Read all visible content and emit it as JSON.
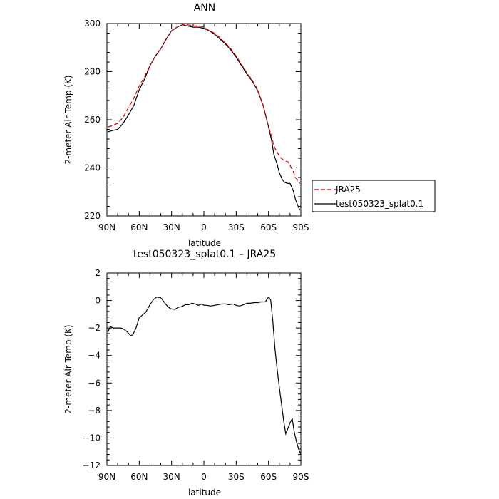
{
  "chart_data": [
    {
      "type": "line",
      "title": "ANN",
      "xlabel": "latitude",
      "ylabel": "2-meter Air Temp (K)",
      "xlim": [
        90,
        -90
      ],
      "ylim": [
        220,
        300
      ],
      "xticks": [
        90,
        60,
        30,
        0,
        -30,
        -60,
        -90
      ],
      "xtick_labels": [
        "90N",
        "60N",
        "30N",
        "0",
        "30S",
        "60S",
        "90S"
      ],
      "yticks": [
        220,
        240,
        260,
        280,
        300
      ],
      "ytick_labels": [
        "220",
        "240",
        "260",
        "280",
        "300"
      ],
      "grid": false,
      "legend": "right-outside",
      "series": [
        {
          "name": "JRA25",
          "color": "#d40000",
          "dash": "dashed",
          "x": [
            89,
            85,
            80,
            75,
            70,
            65,
            60,
            55,
            50,
            45,
            40,
            35,
            30,
            25,
            20,
            15,
            10,
            5,
            0,
            -5,
            -10,
            -15,
            -20,
            -25,
            -30,
            -35,
            -40,
            -45,
            -50,
            -55,
            -60,
            -63,
            -65,
            -68,
            -70,
            -73,
            -75,
            -78,
            -80,
            -83,
            -85,
            -87,
            -89
          ],
          "y": [
            257,
            257.5,
            258.5,
            261,
            265,
            269,
            274,
            278,
            282.5,
            286.5,
            289.5,
            293.5,
            297,
            298.5,
            299.5,
            299.5,
            299,
            299,
            298.5,
            297,
            296,
            294,
            292,
            289.5,
            286.5,
            283,
            279.5,
            276.5,
            272.5,
            266,
            257,
            253,
            249,
            246.5,
            245,
            243.5,
            243,
            242.5,
            241,
            238.5,
            236,
            235,
            233.5
          ]
        },
        {
          "name": "test050323_splat0.1",
          "color": "#000000",
          "dash": "solid",
          "x": [
            89,
            85,
            80,
            75,
            70,
            65,
            60,
            55,
            50,
            45,
            40,
            35,
            30,
            25,
            20,
            15,
            10,
            5,
            0,
            -5,
            -10,
            -15,
            -20,
            -25,
            -30,
            -35,
            -40,
            -45,
            -50,
            -55,
            -60,
            -63,
            -65,
            -68,
            -70,
            -73,
            -75,
            -78,
            -80,
            -83,
            -85,
            -87,
            -89
          ],
          "y": [
            255,
            255.5,
            256,
            258.5,
            262,
            266,
            272.5,
            277,
            282.5,
            286.5,
            289.5,
            293.5,
            297,
            298.5,
            299.5,
            299,
            298.5,
            298.5,
            298,
            297,
            295.5,
            293.5,
            291.5,
            289,
            286,
            282.5,
            279,
            276,
            272,
            266,
            257,
            251,
            245.5,
            241.5,
            238,
            235,
            234,
            233.5,
            233.5,
            230.5,
            227,
            224.5,
            222.5
          ]
        }
      ]
    },
    {
      "type": "line",
      "title": "test050323_splat0.1 – JRA25",
      "xlabel": "latitude",
      "ylabel": "2-meter Air Temp (K)",
      "xlim": [
        90,
        -90
      ],
      "ylim": [
        -12,
        2
      ],
      "xticks": [
        90,
        60,
        30,
        0,
        -30,
        -60,
        -90
      ],
      "xtick_labels": [
        "90N",
        "60N",
        "30N",
        "0",
        "30S",
        "60S",
        "90S"
      ],
      "yticks": [
        -12,
        -10,
        -8,
        -6,
        -4,
        -2,
        0,
        2
      ],
      "ytick_labels": [
        "−12",
        "−10",
        "−8",
        "−6",
        "−4",
        "−2",
        "0",
        "2"
      ],
      "grid": false,
      "series": [
        {
          "color": "#000000",
          "dash": "solid",
          "x": [
            89,
            87,
            84,
            80,
            77,
            74,
            71,
            68,
            66,
            63,
            60,
            57,
            54,
            50,
            47,
            44,
            40,
            37,
            34,
            31,
            27,
            24,
            21,
            17,
            14,
            11,
            8,
            5,
            2,
            0,
            -3,
            -6,
            -10,
            -13,
            -17,
            -20,
            -23,
            -27,
            -30,
            -33,
            -37,
            -40,
            -43,
            -47,
            -50,
            -53,
            -57,
            -60,
            -62,
            -64,
            -66,
            -68,
            -70,
            -72,
            -74,
            -76,
            -78,
            -80,
            -82,
            -84,
            -86,
            -88,
            -90
          ],
          "y": [
            -2.3,
            -1.9,
            -2,
            -2,
            -2,
            -2.1,
            -2.3,
            -2.55,
            -2.5,
            -2,
            -1.25,
            -1.05,
            -0.85,
            -0.3,
            0.05,
            0.25,
            0.2,
            -0.1,
            -0.4,
            -0.6,
            -0.65,
            -0.5,
            -0.45,
            -0.3,
            -0.3,
            -0.2,
            -0.25,
            -0.35,
            -0.25,
            -0.35,
            -0.35,
            -0.4,
            -0.35,
            -0.3,
            -0.25,
            -0.25,
            -0.3,
            -0.25,
            -0.35,
            -0.4,
            -0.3,
            -0.2,
            -0.2,
            -0.15,
            -0.15,
            -0.1,
            -0.1,
            0.25,
            0.05,
            -1.5,
            -3.5,
            -5,
            -6.3,
            -7.5,
            -8.7,
            -9.7,
            -9.3,
            -8.9,
            -8.6,
            -9.6,
            -10.3,
            -10.8,
            -11.2
          ]
        }
      ]
    }
  ]
}
